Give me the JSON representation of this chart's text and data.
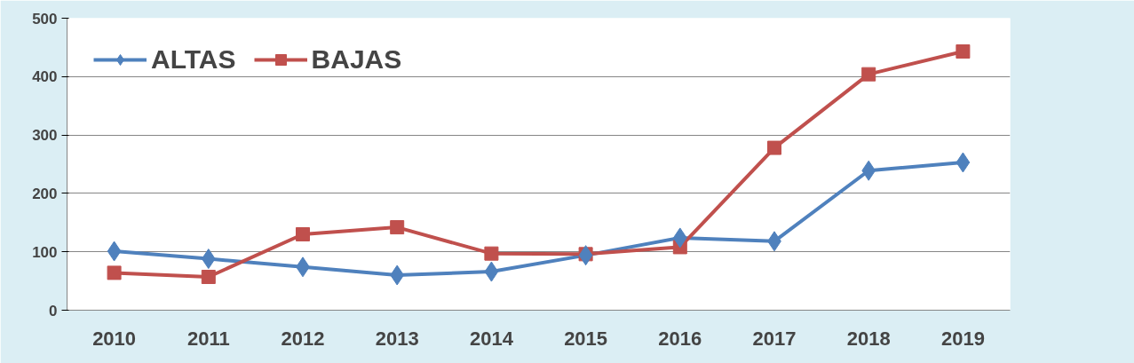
{
  "chart_data": {
    "type": "line",
    "categories": [
      "2010",
      "2011",
      "2012",
      "2013",
      "2014",
      "2015",
      "2016",
      "2017",
      "2018",
      "2019"
    ],
    "series": [
      {
        "name": "ALTAS",
        "color": "#4f81bd",
        "marker": "diamond",
        "values": [
          101,
          88,
          74,
          60,
          66,
          94,
          124,
          118,
          239,
          253
        ]
      },
      {
        "name": "BAJAS",
        "color": "#c0504d",
        "marker": "square",
        "values": [
          64,
          57,
          130,
          142,
          97,
          96,
          108,
          278,
          404,
          443
        ]
      }
    ],
    "ylim": [
      0,
      500
    ],
    "yticks": [
      0,
      100,
      200,
      300,
      400,
      500
    ],
    "grid": "y",
    "legend": "top left",
    "line_style": "solid"
  }
}
